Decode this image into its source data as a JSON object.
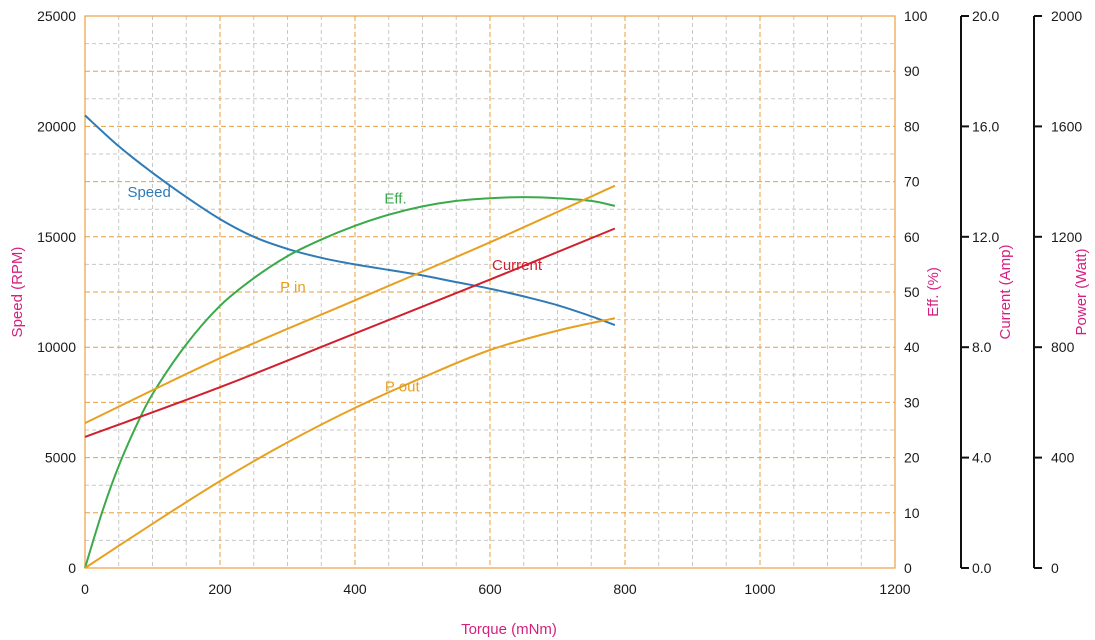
{
  "chart_data": {
    "type": "line",
    "xlabel": "Torque (mNm)",
    "xlim": [
      0,
      1200
    ],
    "x_ticks": [
      "0",
      "200",
      "400",
      "600",
      "800",
      "1000",
      "1200"
    ],
    "axes": {
      "speed": {
        "label": "Speed (RPM)",
        "lim": [
          0,
          25000
        ],
        "ticks": [
          "0",
          "5000",
          "10000",
          "15000",
          "20000",
          "25000"
        ]
      },
      "eff": {
        "label": "Eff. (%)",
        "lim": [
          0,
          100
        ],
        "ticks": [
          "0",
          "10",
          "20",
          "30",
          "40",
          "50",
          "60",
          "70",
          "80",
          "90",
          "100"
        ]
      },
      "current": {
        "label": "Current (Amp)",
        "lim": [
          0,
          20
        ],
        "ticks": [
          "0.0",
          "4.0",
          "8.0",
          "12.0",
          "16.0",
          "20.0"
        ]
      },
      "power": {
        "label": "Power (Watt)",
        "lim": [
          0,
          2000
        ],
        "ticks": [
          "0",
          "400",
          "800",
          "1200",
          "1600",
          "2000"
        ]
      }
    },
    "grid": true,
    "series": [
      {
        "name": "Speed",
        "axis": "speed",
        "color": "#2e7bb8",
        "x": [
          0,
          50,
          100,
          150,
          200,
          250,
          300,
          350,
          400,
          450,
          500,
          550,
          600,
          650,
          700,
          750,
          785
        ],
        "y": [
          20500,
          19100,
          17900,
          16800,
          15800,
          15000,
          14450,
          14050,
          13750,
          13500,
          13250,
          12950,
          12650,
          12300,
          11900,
          11400,
          11000
        ]
      },
      {
        "name": "Eff.",
        "axis": "eff",
        "color": "#3aaa4a",
        "x": [
          0,
          25,
          50,
          75,
          100,
          150,
          200,
          250,
          300,
          350,
          400,
          450,
          500,
          550,
          600,
          650,
          700,
          750,
          785
        ],
        "y": [
          0,
          10,
          18.5,
          25.5,
          31.5,
          40.5,
          47.5,
          52.5,
          56.5,
          59.5,
          62,
          64,
          65.5,
          66.5,
          67,
          67.2,
          67,
          66.5,
          65.6
        ]
      },
      {
        "name": "Current",
        "axis": "current",
        "color": "#d0202e",
        "x": [
          0,
          200,
          400,
          600,
          785
        ],
        "y": [
          4.75,
          6.55,
          8.5,
          10.45,
          12.3
        ]
      },
      {
        "name": "P in",
        "axis": "power",
        "color": "#e8a020",
        "x": [
          0,
          200,
          400,
          600,
          785
        ],
        "y": [
          525,
          760,
          970,
          1180,
          1385
        ]
      },
      {
        "name": "P out",
        "axis": "power",
        "color": "#e8a020",
        "x": [
          0,
          100,
          200,
          300,
          400,
          500,
          600,
          700,
          785
        ],
        "y": [
          0,
          160,
          315,
          455,
          580,
          690,
          790,
          860,
          905
        ]
      }
    ],
    "series_labels": [
      {
        "series": "Speed",
        "text": "Speed",
        "x": 95,
        "y": 16800
      },
      {
        "series": "Eff.",
        "text": "Eff.",
        "x": 460,
        "y": 66
      },
      {
        "series": "Current",
        "text": "Current",
        "x": 640,
        "y": 10.8
      },
      {
        "series": "P in",
        "text": "P in",
        "x": 308,
        "y": 1000
      },
      {
        "series": "P out",
        "text": "P out",
        "x": 470,
        "y": 640
      }
    ]
  }
}
